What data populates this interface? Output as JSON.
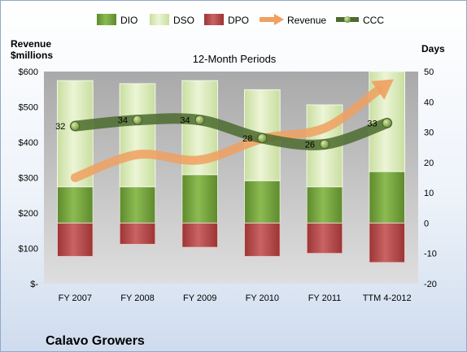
{
  "chart_data": {
    "type": "bar",
    "title": "12-Month Periods",
    "company": "Calavo Growers",
    "left_axis_label": [
      "Revenue",
      "$millions"
    ],
    "right_axis_label": "Days",
    "categories": [
      "FY 2007",
      "FY 2008",
      "FY 2009",
      "FY 2010",
      "FY 2011",
      "TTM 4-2012"
    ],
    "left_axis": {
      "min": 0,
      "max": 600,
      "step": 100,
      "ticks": [
        "$-",
        "$100",
        "$200",
        "$300",
        "$400",
        "$500",
        "$600"
      ]
    },
    "right_axis": {
      "min": -20,
      "max": 50,
      "step": 10,
      "ticks": [
        "-20",
        "-10",
        "0",
        "10",
        "20",
        "30",
        "40",
        "50"
      ]
    },
    "legend": [
      "DIO",
      "DSO",
      "DPO",
      "Revenue",
      "CCC"
    ],
    "legend_position": "top",
    "grid": false,
    "series": [
      {
        "name": "DIO",
        "axis": "right",
        "color": "#6e9a38",
        "values": [
          12,
          12,
          16,
          14,
          12,
          17
        ]
      },
      {
        "name": "DSO",
        "axis": "right",
        "color": "#d9eab2",
        "values": [
          35,
          34,
          31,
          30,
          27,
          33
        ]
      },
      {
        "name": "DPO",
        "axis": "right",
        "color": "#b54848",
        "values": [
          -11,
          -7,
          -8,
          -11,
          -10,
          -13
        ]
      },
      {
        "name": "Revenue",
        "axis": "left",
        "color": "#f0a060",
        "values": [
          300,
          365,
          350,
          410,
          440,
          565
        ]
      },
      {
        "name": "CCC",
        "axis": "right",
        "color": "#4b6b2e",
        "values": [
          32,
          34,
          34,
          28,
          26,
          33
        ]
      }
    ],
    "ccc_labels": [
      "32",
      "34",
      "34",
      "28",
      "26",
      "33"
    ]
  }
}
